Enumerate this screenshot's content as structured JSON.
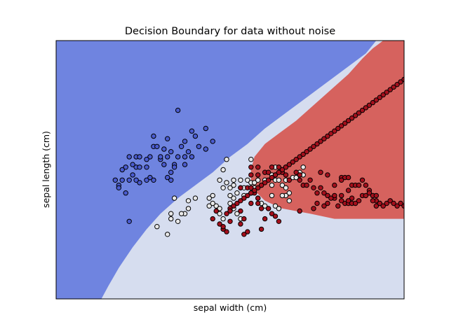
{
  "chart_data": {
    "type": "scatter",
    "title": "Decision Boundary for data without noise",
    "xlabel": "sepal width (cm)",
    "ylabel": "sepal length (cm)",
    "xlim": [
      0,
      100
    ],
    "ylim": [
      0,
      100
    ],
    "grid": false,
    "ticks_shown": false,
    "legend": "none",
    "colors": {
      "class_0_region": "#6f84e0",
      "class_1_region": "#d6ddef",
      "class_2_region": "#d6625e",
      "class_0_point": "#4a5bcf",
      "class_1_point": "#e8e8e8",
      "class_2_point": "#a50f1c",
      "point_edge": "#000000"
    },
    "regions": {
      "class_0_boundary": [
        [
          13,
          0
        ],
        [
          15,
          5
        ],
        [
          18,
          12
        ],
        [
          22,
          20
        ],
        [
          26,
          27
        ],
        [
          30,
          33
        ],
        [
          35,
          39
        ],
        [
          40,
          44
        ],
        [
          45,
          49
        ],
        [
          50,
          55
        ],
        [
          55,
          60
        ],
        [
          60,
          66
        ],
        [
          66,
          72
        ],
        [
          72,
          78
        ],
        [
          78,
          84
        ],
        [
          84,
          90
        ],
        [
          89,
          95
        ],
        [
          92,
          100
        ]
      ],
      "class_2_boundary": [
        [
          100,
          31
        ],
        [
          90,
          31
        ],
        [
          80,
          31
        ],
        [
          73,
          33
        ],
        [
          65,
          35
        ],
        [
          60,
          38
        ],
        [
          57,
          42
        ],
        [
          56,
          46
        ],
        [
          56,
          50
        ],
        [
          57,
          55
        ],
        [
          60,
          60
        ],
        [
          64,
          64
        ],
        [
          69,
          69
        ],
        [
          74,
          75
        ],
        [
          79,
          81
        ],
        [
          84,
          87
        ],
        [
          88,
          93
        ],
        [
          91,
          97
        ],
        [
          94,
          100
        ]
      ]
    },
    "series": [
      {
        "points": [
          [
            35,
            73
          ],
          [
            39,
            65
          ],
          [
            40,
            63
          ],
          [
            41,
            59
          ],
          [
            43,
            58
          ],
          [
            43,
            66
          ],
          [
            45,
            61
          ],
          [
            30,
            54
          ],
          [
            31,
            58
          ],
          [
            32,
            47
          ],
          [
            33,
            49
          ],
          [
            26,
            51
          ],
          [
            27,
            55
          ],
          [
            28,
            59
          ],
          [
            39,
            55
          ],
          [
            34,
            52
          ],
          [
            35,
            55
          ],
          [
            36,
            59
          ],
          [
            37,
            61
          ],
          [
            37,
            55
          ],
          [
            24,
            45
          ],
          [
            23,
            46
          ],
          [
            22,
            48
          ],
          [
            23,
            51
          ],
          [
            20,
            51
          ],
          [
            21,
            46
          ],
          [
            26,
            46
          ],
          [
            27,
            47
          ],
          [
            28,
            46
          ],
          [
            24,
            51
          ],
          [
            30,
            55
          ],
          [
            31,
            52
          ],
          [
            32,
            55
          ],
          [
            37,
            52
          ],
          [
            38,
            57
          ],
          [
            33,
            46
          ],
          [
            34,
            51
          ],
          [
            18,
            44
          ],
          [
            19,
            46
          ],
          [
            17,
            46
          ],
          [
            18,
            43
          ],
          [
            19,
            50
          ],
          [
            20,
            41
          ],
          [
            21,
            55
          ],
          [
            22,
            52
          ],
          [
            23,
            55
          ],
          [
            24,
            55
          ],
          [
            26,
            54
          ],
          [
            28,
            63
          ],
          [
            29,
            59
          ],
          [
            32,
            62
          ],
          [
            33,
            57
          ],
          [
            21,
            30
          ]
        ]
      },
      {
        "points": [
          [
            49,
            54
          ],
          [
            48,
            50
          ],
          [
            47,
            46
          ],
          [
            48,
            43
          ],
          [
            49,
            45
          ],
          [
            50,
            43
          ],
          [
            51,
            46
          ],
          [
            51,
            44
          ],
          [
            52,
            41
          ],
          [
            53,
            43
          ],
          [
            53,
            46
          ],
          [
            54,
            43
          ],
          [
            55,
            46
          ],
          [
            56,
            45
          ],
          [
            57,
            43
          ],
          [
            57,
            45
          ],
          [
            58,
            46
          ],
          [
            59,
            44
          ],
          [
            60,
            46
          ],
          [
            63,
            51
          ],
          [
            62,
            48
          ],
          [
            62,
            44
          ],
          [
            63,
            46
          ],
          [
            64,
            46
          ],
          [
            65,
            44
          ],
          [
            66,
            43
          ],
          [
            67,
            41
          ],
          [
            66,
            40
          ],
          [
            67,
            38
          ],
          [
            65,
            40
          ],
          [
            62,
            40
          ],
          [
            56,
            41
          ],
          [
            58,
            39
          ],
          [
            59,
            37
          ],
          [
            60,
            36
          ],
          [
            61,
            35
          ],
          [
            63,
            36
          ],
          [
            64,
            35
          ],
          [
            66,
            46
          ],
          [
            68,
            47
          ],
          [
            69,
            47
          ],
          [
            70,
            49
          ],
          [
            71,
            48
          ],
          [
            71,
            51
          ],
          [
            56,
            54
          ],
          [
            54,
            40
          ],
          [
            52,
            33
          ],
          [
            53,
            31
          ],
          [
            50,
            37
          ],
          [
            51,
            39
          ],
          [
            51,
            35
          ],
          [
            50,
            40
          ],
          [
            45,
            40
          ],
          [
            44,
            36
          ],
          [
            46,
            36
          ],
          [
            47,
            35
          ],
          [
            47,
            33
          ],
          [
            48,
            31
          ],
          [
            45,
            37
          ],
          [
            44,
            39
          ],
          [
            38,
            38
          ],
          [
            38,
            35
          ],
          [
            37,
            33
          ],
          [
            34,
            39
          ],
          [
            40,
            39
          ],
          [
            32,
            25
          ],
          [
            33,
            33
          ],
          [
            33,
            31
          ],
          [
            35,
            30
          ],
          [
            36,
            33
          ],
          [
            29,
            28
          ]
        ]
      },
      {
        "points": [
          [
            53,
            43
          ],
          [
            55,
            43
          ],
          [
            56,
            41
          ],
          [
            56,
            43
          ],
          [
            57,
            41
          ],
          [
            58,
            39
          ],
          [
            56,
            48
          ],
          [
            56,
            51
          ],
          [
            58,
            48
          ],
          [
            58,
            51
          ],
          [
            60,
            49
          ],
          [
            61,
            49
          ],
          [
            62,
            51
          ],
          [
            63,
            48
          ],
          [
            64,
            51
          ],
          [
            65,
            49
          ],
          [
            66,
            51
          ],
          [
            66,
            48
          ],
          [
            67,
            46
          ],
          [
            69,
            49
          ],
          [
            70,
            46
          ],
          [
            70,
            48
          ],
          [
            71,
            44
          ],
          [
            72,
            44
          ],
          [
            73,
            46
          ],
          [
            74,
            43
          ],
          [
            75,
            41
          ],
          [
            77,
            41
          ],
          [
            78,
            40
          ],
          [
            80,
            44
          ],
          [
            82,
            47
          ],
          [
            83,
            47
          ],
          [
            84,
            47
          ],
          [
            85,
            44
          ],
          [
            84,
            42
          ],
          [
            82,
            46
          ],
          [
            78,
            48
          ],
          [
            76,
            49
          ],
          [
            76,
            43
          ],
          [
            80,
            39
          ],
          [
            83,
            37
          ],
          [
            84,
            37
          ],
          [
            85,
            39
          ],
          [
            86,
            44
          ],
          [
            87,
            44
          ],
          [
            88,
            46
          ],
          [
            89,
            44
          ],
          [
            90,
            42
          ],
          [
            91,
            40
          ],
          [
            92,
            38
          ],
          [
            93,
            37
          ],
          [
            92,
            36
          ],
          [
            91,
            38
          ],
          [
            70,
            34
          ],
          [
            74,
            35
          ],
          [
            75,
            37
          ],
          [
            77,
            36
          ],
          [
            78,
            37
          ],
          [
            79,
            39
          ],
          [
            80,
            40
          ],
          [
            81,
            36
          ],
          [
            82,
            38
          ],
          [
            82,
            40
          ],
          [
            84,
            38
          ],
          [
            85,
            37
          ],
          [
            86,
            37
          ],
          [
            87,
            38
          ],
          [
            88,
            40
          ],
          [
            89,
            40
          ],
          [
            90,
            41
          ],
          [
            91,
            40
          ],
          [
            92,
            40
          ],
          [
            93,
            37
          ],
          [
            94,
            36
          ],
          [
            95,
            37
          ],
          [
            96,
            38
          ],
          [
            97,
            37
          ],
          [
            98,
            36
          ],
          [
            99,
            37
          ],
          [
            100,
            36
          ],
          [
            101,
            35
          ],
          [
            102,
            37
          ],
          [
            103,
            35
          ],
          [
            56,
            37
          ],
          [
            58,
            37
          ],
          [
            59,
            35
          ],
          [
            61,
            35
          ],
          [
            62,
            33
          ],
          [
            63,
            32
          ],
          [
            64,
            30
          ],
          [
            60,
            31
          ],
          [
            59,
            27
          ],
          [
            55,
            26
          ],
          [
            54,
            25
          ],
          [
            53,
            29
          ],
          [
            54,
            31
          ],
          [
            53,
            34
          ],
          [
            50,
            35
          ],
          [
            50,
            30
          ],
          [
            49,
            26
          ],
          [
            48,
            27
          ],
          [
            45,
            31
          ],
          [
            46,
            34
          ],
          [
            47,
            29
          ],
          [
            48,
            28
          ],
          [
            49,
            33
          ],
          [
            50,
            34
          ],
          [
            51,
            36
          ],
          [
            52,
            37
          ],
          [
            53,
            38
          ],
          [
            54,
            39
          ],
          [
            55,
            40
          ],
          [
            56,
            41
          ],
          [
            57,
            42
          ],
          [
            58,
            43
          ],
          [
            59,
            44
          ],
          [
            60,
            45
          ],
          [
            61,
            46
          ],
          [
            62,
            47
          ],
          [
            63,
            48
          ],
          [
            64,
            49
          ],
          [
            65,
            50
          ],
          [
            66,
            51
          ],
          [
            67,
            52
          ],
          [
            68,
            53
          ],
          [
            69,
            54
          ],
          [
            70,
            55
          ],
          [
            71,
            56
          ],
          [
            72,
            57
          ],
          [
            73,
            58
          ],
          [
            74,
            59
          ],
          [
            75,
            60
          ],
          [
            76,
            61
          ],
          [
            77,
            62
          ],
          [
            78,
            63
          ],
          [
            79,
            64
          ],
          [
            80,
            65
          ],
          [
            81,
            66
          ],
          [
            82,
            67
          ],
          [
            83,
            68
          ],
          [
            84,
            69
          ],
          [
            85,
            70
          ],
          [
            86,
            71
          ],
          [
            87,
            72
          ],
          [
            88,
            73
          ],
          [
            89,
            74
          ],
          [
            90,
            75
          ],
          [
            91,
            76
          ],
          [
            92,
            77
          ],
          [
            93,
            78
          ],
          [
            94,
            79
          ],
          [
            95,
            80
          ],
          [
            96,
            81
          ],
          [
            97,
            82
          ],
          [
            98,
            83
          ],
          [
            99,
            84
          ],
          [
            100,
            85
          ]
        ]
      }
    ]
  }
}
